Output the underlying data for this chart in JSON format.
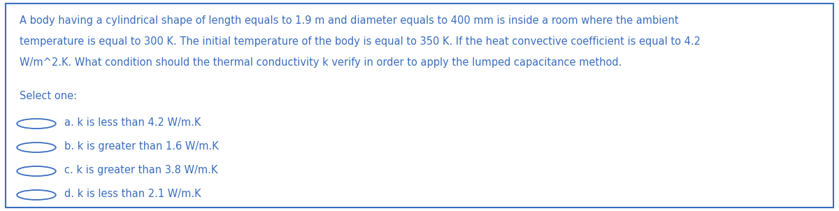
{
  "question_text_lines": [
    "A body having a cylindrical shape of length equals to 1.9 m and diameter equals to 400 mm is inside a room where the ambient",
    "temperature is equal to 300 K. The initial temperature of the body is equal to 350 K. If the heat convective coefficient is equal to 4.2",
    "W/m^2.K. What condition should the thermal conductivity k verify in order to apply the lumped capacitance method."
  ],
  "select_label": "Select one:",
  "options": [
    "a. k is less than 4.2 W/m.K",
    "b. k is greater than 1.6 W/m.K",
    "c. k is greater than 3.8 W/m.K",
    "d. k is less than 2.1 W/m.K"
  ],
  "text_color": "#3a6dbf",
  "border_color": "#3a6dbf",
  "background_color": "#ffffff",
  "font_size_question": 10.5,
  "font_size_options": 10.5
}
